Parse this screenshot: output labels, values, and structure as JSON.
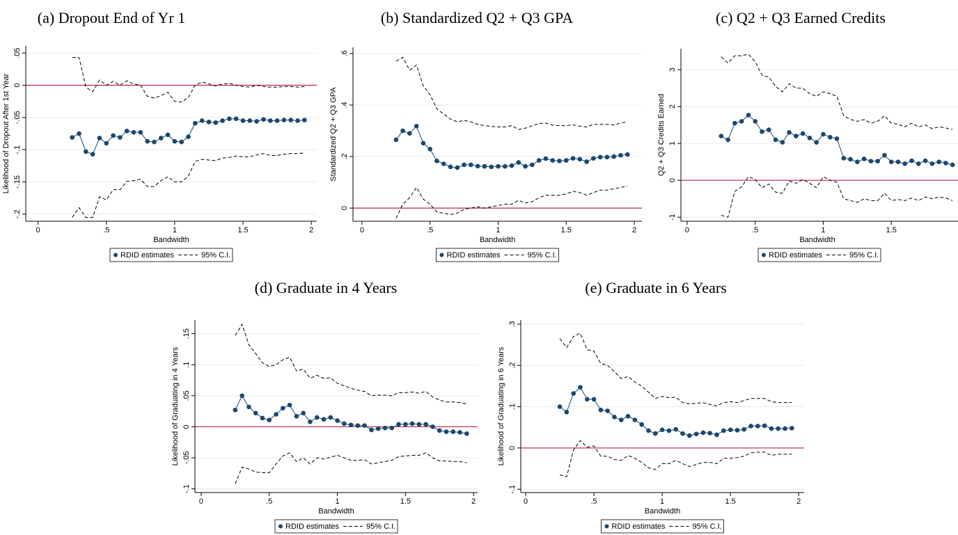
{
  "chart_data": [
    {
      "type": "line",
      "title": "(a) Dropout End of Yr 1",
      "x_label": "Bandwidth",
      "y_label": "Likelihood of Dropout After 1st Year",
      "x": [
        0.25,
        0.3,
        0.35,
        0.4,
        0.45,
        0.5,
        0.55,
        0.6,
        0.65,
        0.7,
        0.75,
        0.8,
        0.85,
        0.9,
        0.95,
        1.0,
        1.05,
        1.1,
        1.15,
        1.2,
        1.25,
        1.3,
        1.35,
        1.4,
        1.45,
        1.5,
        1.55,
        1.6,
        1.65,
        1.7,
        1.75,
        1.8,
        1.85,
        1.9,
        1.95
      ],
      "series": [
        {
          "name": "RDID estimates",
          "color": "#1a476f",
          "values": [
            -0.081,
            -0.075,
            -0.103,
            -0.107,
            -0.082,
            -0.09,
            -0.078,
            -0.081,
            -0.071,
            -0.073,
            -0.073,
            -0.087,
            -0.088,
            -0.082,
            -0.077,
            -0.087,
            -0.088,
            -0.08,
            -0.059,
            -0.055,
            -0.057,
            -0.058,
            -0.055,
            -0.052,
            -0.052,
            -0.055,
            -0.055,
            -0.056,
            -0.053,
            -0.055,
            -0.055,
            -0.054,
            -0.054,
            -0.055,
            -0.054
          ]
        },
        {
          "name": "95% C.I.",
          "color": "#000000",
          "upper": [
            0.043,
            0.043,
            -0.003,
            -0.01,
            0.008,
            0.0,
            0.006,
            0.0,
            0.007,
            0.002,
            0.0,
            -0.017,
            -0.02,
            -0.016,
            -0.011,
            -0.025,
            -0.026,
            -0.019,
            0.0,
            0.005,
            0.002,
            -0.001,
            0.002,
            0.003,
            0.0,
            -0.002,
            -0.003,
            0.0,
            -0.002,
            -0.003,
            -0.003,
            -0.002,
            -0.002,
            -0.003,
            -0.002
          ],
          "lower": [
            -0.205,
            -0.19,
            -0.205,
            -0.205,
            -0.173,
            -0.178,
            -0.162,
            -0.162,
            -0.149,
            -0.148,
            -0.146,
            -0.157,
            -0.157,
            -0.148,
            -0.142,
            -0.15,
            -0.15,
            -0.141,
            -0.118,
            -0.115,
            -0.116,
            -0.117,
            -0.113,
            -0.112,
            -0.11,
            -0.111,
            -0.111,
            -0.108,
            -0.106,
            -0.109,
            -0.109,
            -0.107,
            -0.106,
            -0.106,
            -0.105
          ]
        }
      ],
      "hline": {
        "value": 0,
        "color": "#c1224f"
      },
      "xlim": [
        -0.09,
        2.04
      ],
      "xticks": [
        0,
        {
          "value": 0.5,
          "label": ".5"
        },
        1,
        1.5,
        2
      ],
      "ylim": [
        -0.211,
        0.061
      ],
      "yticks": [
        {
          "value": -0.2,
          "label": "-.2"
        },
        {
          "value": -0.15,
          "label": "-.15"
        },
        {
          "value": -0.1,
          "label": "-.1"
        },
        {
          "value": -0.05,
          "label": "-.05"
        },
        0,
        {
          "value": 0.05,
          "label": ".05"
        }
      ],
      "grid": true,
      "legend": "bottom"
    },
    {
      "type": "line",
      "title": "(b) Standardized Q2 + Q3 GPA",
      "x_label": "Bandwidth",
      "y_label": "Standardized Q2 + Q3 GPA",
      "x": [
        0.25,
        0.3,
        0.35,
        0.4,
        0.45,
        0.5,
        0.55,
        0.6,
        0.65,
        0.7,
        0.75,
        0.8,
        0.85,
        0.9,
        0.95,
        1.0,
        1.05,
        1.1,
        1.15,
        1.2,
        1.25,
        1.3,
        1.35,
        1.4,
        1.45,
        1.5,
        1.55,
        1.6,
        1.65,
        1.7,
        1.75,
        1.8,
        1.85,
        1.9,
        1.95
      ],
      "series": [
        {
          "name": "RDID estimates",
          "color": "#1a476f",
          "values": [
            0.265,
            0.3,
            0.29,
            0.318,
            0.252,
            0.229,
            0.183,
            0.172,
            0.16,
            0.157,
            0.168,
            0.168,
            0.163,
            0.162,
            0.16,
            0.162,
            0.162,
            0.165,
            0.177,
            0.162,
            0.168,
            0.185,
            0.192,
            0.185,
            0.183,
            0.185,
            0.193,
            0.19,
            0.18,
            0.193,
            0.198,
            0.198,
            0.2,
            0.205,
            0.208
          ]
        },
        {
          "name": "95% C.I.",
          "color": "#000000",
          "upper": [
            0.57,
            0.585,
            0.535,
            0.555,
            0.475,
            0.44,
            0.385,
            0.365,
            0.345,
            0.335,
            0.34,
            0.335,
            0.325,
            0.32,
            0.317,
            0.315,
            0.315,
            0.32,
            0.305,
            0.31,
            0.32,
            0.328,
            0.33,
            0.322,
            0.32,
            0.32,
            0.323,
            0.318,
            0.315,
            0.325,
            0.325,
            0.325,
            0.323,
            0.33,
            0.335
          ],
          "lower": [
            -0.04,
            0.015,
            0.04,
            0.08,
            0.035,
            0.015,
            -0.015,
            -0.02,
            -0.025,
            -0.02,
            -0.005,
            0.0,
            0.005,
            0.0,
            0.005,
            0.01,
            0.015,
            0.015,
            0.03,
            0.02,
            0.025,
            0.04,
            0.05,
            0.05,
            0.05,
            0.055,
            0.065,
            0.06,
            0.05,
            0.06,
            0.07,
            0.07,
            0.075,
            0.08,
            0.085
          ]
        }
      ],
      "hline": {
        "value": 0,
        "color": "#c1224f"
      },
      "xlim": [
        -0.066,
        2.056
      ],
      "xticks": [
        0,
        {
          "value": 0.5,
          "label": ".5"
        },
        1,
        1.5,
        2
      ],
      "ylim": [
        -0.051,
        0.624
      ],
      "yticks": [
        0,
        {
          "value": 0.2,
          "label": ".2"
        },
        {
          "value": 0.4,
          "label": ".4"
        },
        {
          "value": 0.6,
          "label": ".6"
        }
      ],
      "grid": true,
      "legend": "bottom"
    },
    {
      "type": "line",
      "title": "(c) Q2 + Q3 Earned Credits",
      "x_label": "Bandwidth",
      "y_label": "Q2 + Q3 Credits Earned",
      "x": [
        0.25,
        0.3,
        0.35,
        0.4,
        0.45,
        0.5,
        0.55,
        0.6,
        0.65,
        0.7,
        0.75,
        0.8,
        0.85,
        0.9,
        0.95,
        1.0,
        1.05,
        1.1,
        1.15,
        1.2,
        1.25,
        1.3,
        1.35,
        1.4,
        1.45,
        1.5,
        1.55,
        1.6,
        1.65,
        1.7,
        1.75,
        1.8,
        1.85,
        1.9,
        1.95
      ],
      "series": [
        {
          "name": "RDID estimates",
          "color": "#1a476f",
          "values": [
            1.2,
            1.1,
            1.55,
            1.6,
            1.77,
            1.6,
            1.32,
            1.37,
            1.1,
            1.03,
            1.3,
            1.2,
            1.27,
            1.15,
            1.03,
            1.25,
            1.17,
            1.13,
            0.6,
            0.57,
            0.5,
            0.58,
            0.52,
            0.52,
            0.68,
            0.5,
            0.5,
            0.45,
            0.53,
            0.45,
            0.53,
            0.45,
            0.5,
            0.47,
            0.42
          ]
        },
        {
          "name": "95% C.I.",
          "color": "#000000",
          "upper": [
            3.35,
            3.18,
            3.38,
            3.38,
            3.42,
            3.22,
            2.85,
            2.8,
            2.55,
            2.4,
            2.62,
            2.5,
            2.5,
            2.35,
            2.28,
            2.4,
            2.35,
            2.28,
            1.75,
            1.65,
            1.6,
            1.65,
            1.55,
            1.6,
            1.75,
            1.55,
            1.52,
            1.45,
            1.55,
            1.45,
            1.5,
            1.4,
            1.45,
            1.42,
            1.38
          ],
          "lower": [
            -0.95,
            -1.0,
            -0.3,
            -0.18,
            0.1,
            0.02,
            -0.2,
            -0.1,
            -0.32,
            -0.35,
            -0.02,
            -0.08,
            0.02,
            -0.08,
            -0.2,
            0.1,
            0.0,
            -0.05,
            -0.5,
            -0.55,
            -0.6,
            -0.5,
            -0.55,
            -0.55,
            -0.35,
            -0.55,
            -0.52,
            -0.55,
            -0.48,
            -0.55,
            -0.45,
            -0.5,
            -0.45,
            -0.48,
            -0.55
          ]
        }
      ],
      "hline": {
        "value": 0,
        "color": "#c1224f"
      },
      "xlim": [
        -0.046,
        1.99
      ],
      "xticks": [
        0,
        {
          "value": 0.5,
          "label": ".5"
        },
        1,
        1.5
      ],
      "ylim": [
        -1.11,
        3.57
      ],
      "yticks": [
        -1,
        0,
        1,
        2,
        3
      ],
      "grid": true,
      "legend": "bottom"
    },
    {
      "type": "line",
      "title": "(d) Graduate in 4 Years",
      "x_label": "Bandwidth",
      "y_label": "Likelihood of Graduating in 4 Years",
      "x": [
        0.25,
        0.3,
        0.35,
        0.4,
        0.45,
        0.5,
        0.55,
        0.6,
        0.65,
        0.7,
        0.75,
        0.8,
        0.85,
        0.9,
        0.95,
        1.0,
        1.05,
        1.1,
        1.15,
        1.2,
        1.25,
        1.3,
        1.35,
        1.4,
        1.45,
        1.5,
        1.55,
        1.6,
        1.65,
        1.7,
        1.75,
        1.8,
        1.85,
        1.9,
        1.95
      ],
      "series": [
        {
          "name": "RDID estimates",
          "color": "#1a476f",
          "values": [
            0.027,
            0.05,
            0.032,
            0.022,
            0.014,
            0.011,
            0.02,
            0.03,
            0.035,
            0.017,
            0.022,
            0.008,
            0.015,
            0.012,
            0.015,
            0.01,
            0.005,
            0.003,
            0.002,
            0.002,
            -0.005,
            -0.003,
            -0.002,
            -0.002,
            0.004,
            0.004,
            0.005,
            0.004,
            0.004,
            0.0,
            -0.006,
            -0.008,
            -0.008,
            -0.009,
            -0.011
          ]
        },
        {
          "name": "95% C.I.",
          "color": "#000000",
          "upper": [
            0.147,
            0.165,
            0.132,
            0.118,
            0.103,
            0.097,
            0.1,
            0.108,
            0.112,
            0.09,
            0.093,
            0.078,
            0.083,
            0.078,
            0.079,
            0.07,
            0.066,
            0.062,
            0.059,
            0.057,
            0.05,
            0.051,
            0.051,
            0.05,
            0.055,
            0.055,
            0.056,
            0.054,
            0.057,
            0.048,
            0.043,
            0.04,
            0.04,
            0.039,
            0.037
          ],
          "lower": [
            -0.092,
            -0.065,
            -0.068,
            -0.073,
            -0.074,
            -0.074,
            -0.06,
            -0.047,
            -0.042,
            -0.056,
            -0.05,
            -0.06,
            -0.05,
            -0.052,
            -0.049,
            -0.046,
            -0.05,
            -0.054,
            -0.054,
            -0.053,
            -0.06,
            -0.058,
            -0.056,
            -0.054,
            -0.048,
            -0.047,
            -0.046,
            -0.046,
            -0.042,
            -0.05,
            -0.055,
            -0.055,
            -0.056,
            -0.056,
            -0.058
          ]
        }
      ],
      "hline": {
        "value": 0,
        "color": "#c1224f"
      },
      "xlim": [
        -0.046,
        2.03
      ],
      "xticks": [
        0,
        {
          "value": 0.5,
          "label": ".5"
        },
        1,
        1.5,
        2
      ],
      "ylim": [
        -0.106,
        0.172
      ],
      "yticks": [
        {
          "value": -0.1,
          "label": "-.1"
        },
        {
          "value": -0.05,
          "label": "-.05"
        },
        0,
        {
          "value": 0.05,
          "label": ".05"
        },
        {
          "value": 0.1,
          "label": ".1"
        },
        {
          "value": 0.15,
          "label": ".15"
        }
      ],
      "grid": true,
      "legend": "bottom"
    },
    {
      "type": "line",
      "title": "(e) Graduate in 6 Years",
      "x_label": "Bandwidth",
      "y_label": "Likelihood of Graduating in 6 Years",
      "x": [
        0.25,
        0.3,
        0.35,
        0.4,
        0.45,
        0.5,
        0.55,
        0.6,
        0.65,
        0.7,
        0.75,
        0.8,
        0.85,
        0.9,
        0.95,
        1.0,
        1.05,
        1.1,
        1.15,
        1.2,
        1.25,
        1.3,
        1.35,
        1.4,
        1.45,
        1.5,
        1.55,
        1.6,
        1.65,
        1.7,
        1.75,
        1.8,
        1.85,
        1.9,
        1.95
      ],
      "series": [
        {
          "name": "RDID estimates",
          "color": "#1a476f",
          "values": [
            0.1,
            0.087,
            0.132,
            0.147,
            0.118,
            0.118,
            0.092,
            0.09,
            0.075,
            0.068,
            0.077,
            0.068,
            0.057,
            0.042,
            0.035,
            0.044,
            0.042,
            0.045,
            0.035,
            0.03,
            0.034,
            0.037,
            0.036,
            0.032,
            0.042,
            0.044,
            0.043,
            0.045,
            0.053,
            0.053,
            0.054,
            0.047,
            0.047,
            0.047,
            0.048
          ]
        },
        {
          "name": "95% C.I.",
          "color": "#000000",
          "upper": [
            0.265,
            0.243,
            0.27,
            0.278,
            0.238,
            0.235,
            0.205,
            0.2,
            0.185,
            0.168,
            0.173,
            0.16,
            0.15,
            0.135,
            0.12,
            0.125,
            0.122,
            0.123,
            0.11,
            0.107,
            0.108,
            0.11,
            0.105,
            0.102,
            0.11,
            0.112,
            0.11,
            0.115,
            0.12,
            0.12,
            0.12,
            0.112,
            0.11,
            0.11,
            0.11
          ],
          "lower": [
            -0.065,
            -0.07,
            -0.005,
            0.018,
            0.002,
            0.005,
            -0.02,
            -0.02,
            -0.028,
            -0.03,
            -0.018,
            -0.025,
            -0.035,
            -0.048,
            -0.052,
            -0.038,
            -0.038,
            -0.03,
            -0.038,
            -0.045,
            -0.04,
            -0.035,
            -0.035,
            -0.038,
            -0.025,
            -0.025,
            -0.023,
            -0.02,
            -0.012,
            -0.01,
            -0.01,
            -0.018,
            -0.015,
            -0.015,
            -0.015
          ]
        }
      ],
      "hline": {
        "value": 0,
        "color": "#c1224f"
      },
      "xlim": [
        -0.036,
        2.04
      ],
      "xticks": [
        0,
        {
          "value": 0.5,
          "label": ".5"
        },
        1,
        1.5,
        2
      ],
      "ylim": [
        -0.108,
        0.31
      ],
      "yticks": [
        {
          "value": -0.1,
          "label": "-.1"
        },
        0,
        {
          "value": 0.1,
          "label": ".1"
        },
        {
          "value": 0.2,
          "label": ".2"
        },
        {
          "value": 0.3,
          "label": ".3"
        }
      ],
      "grid": true,
      "legend": "bottom"
    }
  ]
}
